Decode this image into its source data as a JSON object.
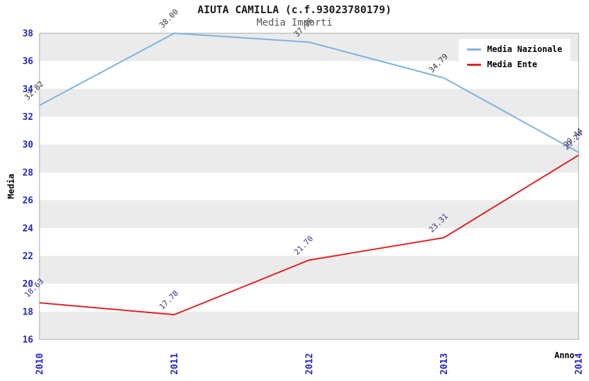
{
  "chart_data": {
    "type": "line",
    "title": "AIUTA CAMILLA (c.f.93023780179)",
    "subtitle": "Media Importi",
    "xlabel": "Anno",
    "ylabel": "Media",
    "x": [
      2010,
      2011,
      2012,
      2013,
      2014
    ],
    "ylim": [
      16,
      38
    ],
    "ytick_step": 2,
    "yticks": [
      16,
      18,
      20,
      22,
      24,
      26,
      28,
      30,
      32,
      34,
      36,
      38
    ],
    "grid": "alternating horizontal bands, no vertical gridlines",
    "legend_position": "top-right",
    "series": [
      {
        "name": "Media Nazionale",
        "color": "#7cb2e4",
        "label_color": "#333333",
        "values": [
          32.82,
          38.0,
          37.36,
          34.79,
          29.44
        ],
        "labels": [
          "32.82",
          "38.00",
          "37.36",
          "34.79",
          "29.44"
        ]
      },
      {
        "name": "Media Ente",
        "color": "#e02222",
        "label_color": "#333388",
        "values": [
          18.63,
          17.78,
          21.7,
          23.31,
          29.24
        ],
        "labels": [
          "18.63",
          "17.78",
          "21.70",
          "23.31",
          "29.24"
        ]
      }
    ]
  },
  "colors": {
    "tick_label": "#2222cc",
    "band_gray": "#ebebeb",
    "plot_border": "#a8a8a8",
    "subtitle_text": "#555555",
    "title_text": "#1a1a1a"
  }
}
